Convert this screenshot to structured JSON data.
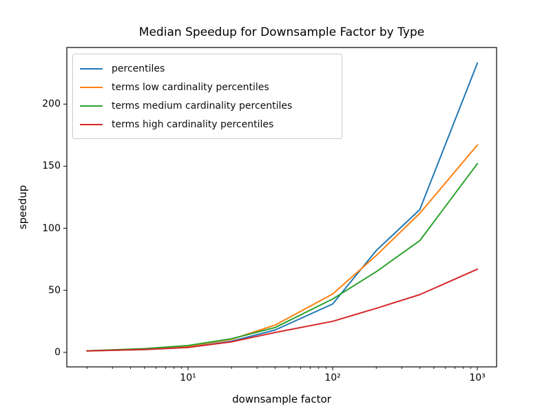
{
  "figure": {
    "background": "#ffffff",
    "frame_color": "#000000"
  },
  "chart_data": {
    "type": "line",
    "title": "Median Speedup for Downsample Factor by Type",
    "xlabel": "downsample factor",
    "ylabel": "speedup",
    "x_scale": "log",
    "grid": false,
    "legend_position": "upper left",
    "x": [
      2,
      5,
      10,
      20,
      40,
      100,
      200,
      400,
      1000
    ],
    "series": [
      {
        "name": "percentiles",
        "color": "#1f77b4",
        "values": [
          1.2,
          2.2,
          4,
          9,
          18,
          39,
          82,
          115,
          233
        ]
      },
      {
        "name": "terms low cardinality percentiles",
        "color": "#ff7f0e",
        "values": [
          1.2,
          2.5,
          5,
          10.5,
          22,
          47,
          78,
          112,
          167
        ]
      },
      {
        "name": "terms medium cardinality percentiles",
        "color": "#2ca02c",
        "values": [
          1.3,
          3,
          5.5,
          11,
          20,
          43,
          65,
          90,
          152
        ]
      },
      {
        "name": "terms high cardinality percentiles",
        "color": "#d62728",
        "values": [
          1.1,
          2.3,
          4,
          8.5,
          16,
          25,
          35.5,
          46.5,
          67
        ]
      }
    ],
    "x_ticks": [
      10,
      100,
      1000
    ],
    "x_tick_labels": [
      "10¹",
      "10²",
      "10³"
    ],
    "y_ticks": [
      0,
      50,
      100,
      150,
      200
    ],
    "xlim_log10": [
      0.162,
      3.133
    ],
    "ylim": [
      -11.7,
      245.6
    ]
  }
}
